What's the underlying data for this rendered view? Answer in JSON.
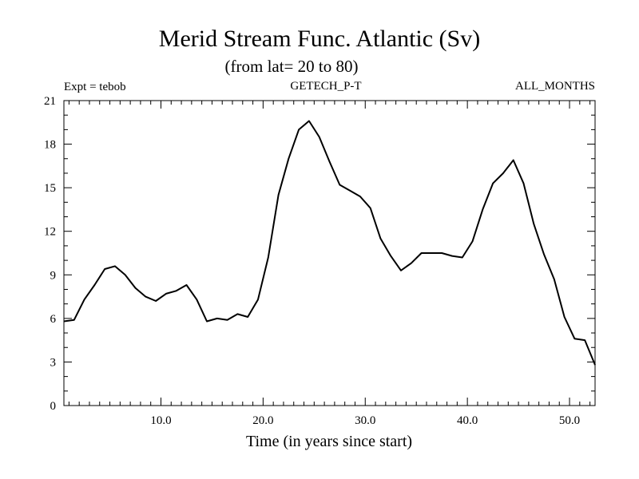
{
  "chart_data": {
    "type": "line",
    "title": "Merid Stream Func. Atlantic (Sv)",
    "subtitle": "(from lat= 20 to 80)",
    "annotations": {
      "left": "Expt = tebob",
      "center": "GETECH_P-T",
      "right": "ALL_MONTHS"
    },
    "xlabel": "Time (in years since start)",
    "ylabel": "",
    "xlim": [
      0.5,
      52.5
    ],
    "ylim": [
      0,
      21
    ],
    "xticks": [
      10,
      20,
      30,
      40,
      50
    ],
    "xtick_labels": [
      "10.0",
      "20.0",
      "30.0",
      "40.0",
      "50.0"
    ],
    "yticks": [
      0,
      3,
      6,
      9,
      12,
      15,
      18,
      21
    ],
    "ytick_labels": [
      "0",
      "3",
      "6",
      "9",
      "12",
      "15",
      "18",
      "21"
    ],
    "x_minor_step": 1,
    "y_minor_step": 1,
    "grid": false,
    "series": [
      {
        "x": [
          0.5,
          1.5,
          2.5,
          3.5,
          4.5,
          5.5,
          6.5,
          7.5,
          8.5,
          9.5,
          10.5,
          11.5,
          12.5,
          13.5,
          14.5,
          15.5,
          16.5,
          17.5,
          18.5,
          19.5,
          20.5,
          21.5,
          22.5,
          23.5,
          24.5,
          25.5,
          26.5,
          27.5,
          28.5,
          29.5,
          30.5,
          31.5,
          32.5,
          33.5,
          34.5,
          35.5,
          36.5,
          37.5,
          38.5,
          39.5,
          40.5,
          41.5,
          42.5,
          43.5,
          44.5,
          45.5,
          46.5,
          47.5,
          48.5,
          49.5,
          50.5,
          51.5,
          52.5
        ],
        "y": [
          5.8,
          5.9,
          7.3,
          8.3,
          9.4,
          9.6,
          9.0,
          8.1,
          7.5,
          7.2,
          7.7,
          7.9,
          8.3,
          7.3,
          5.8,
          6.0,
          5.9,
          6.3,
          6.1,
          7.3,
          10.2,
          14.5,
          17.0,
          19.0,
          19.6,
          18.5,
          16.8,
          15.2,
          14.8,
          14.4,
          13.6,
          11.5,
          10.3,
          9.3,
          9.8,
          10.5,
          10.5,
          10.5,
          10.3,
          10.2,
          11.3,
          13.5,
          15.3,
          16.0,
          16.9,
          15.3,
          12.5,
          10.4,
          8.7,
          6.1,
          4.6,
          4.5,
          2.8
        ]
      }
    ]
  }
}
